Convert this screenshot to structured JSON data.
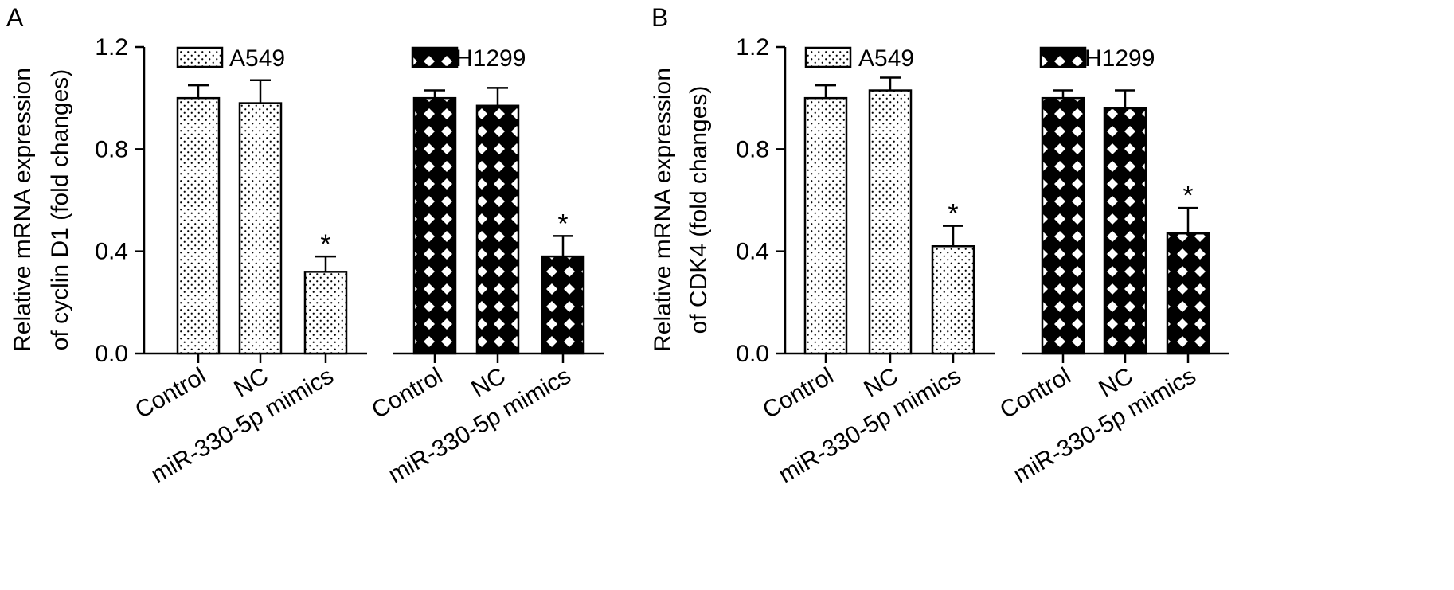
{
  "chart_data": [
    {
      "panel": "A",
      "type": "bar",
      "ylabel_line1": "Relative mRNA expression",
      "ylabel_line2": "of cyclin D1 (fold changes)",
      "ylim": [
        0,
        1.2
      ],
      "yticks": [
        "0.0",
        "0.4",
        "0.8",
        "1.2"
      ],
      "legend_position": "top",
      "groups": [
        {
          "name": "A549",
          "pattern": "dots",
          "categories": [
            "Control",
            "NC",
            "miR-330-5p mimics"
          ],
          "values": [
            1.0,
            0.98,
            0.32
          ],
          "errors": [
            0.05,
            0.09,
            0.06
          ],
          "significance": [
            "",
            "",
            "*"
          ]
        },
        {
          "name": "H1299",
          "pattern": "crosshatch",
          "categories": [
            "Control",
            "NC",
            "miR-330-5p mimics"
          ],
          "values": [
            1.0,
            0.97,
            0.38
          ],
          "errors": [
            0.03,
            0.07,
            0.08
          ],
          "significance": [
            "",
            "",
            "*"
          ]
        }
      ]
    },
    {
      "panel": "B",
      "type": "bar",
      "ylabel_line1": "Relative mRNA expression",
      "ylabel_line2": "of CDK4 (fold changes)",
      "ylim": [
        0,
        1.2
      ],
      "yticks": [
        "0.0",
        "0.4",
        "0.8",
        "1.2"
      ],
      "legend_position": "top",
      "groups": [
        {
          "name": "A549",
          "pattern": "dots",
          "categories": [
            "Control",
            "NC",
            "miR-330-5p mimics"
          ],
          "values": [
            1.0,
            1.03,
            0.42
          ],
          "errors": [
            0.05,
            0.05,
            0.08
          ],
          "significance": [
            "",
            "",
            "*"
          ]
        },
        {
          "name": "H1299",
          "pattern": "crosshatch",
          "categories": [
            "Control",
            "NC",
            "miR-330-5p mimics"
          ],
          "values": [
            1.0,
            0.96,
            0.47
          ],
          "errors": [
            0.03,
            0.07,
            0.1
          ],
          "significance": [
            "",
            "",
            "*"
          ]
        }
      ]
    }
  ]
}
